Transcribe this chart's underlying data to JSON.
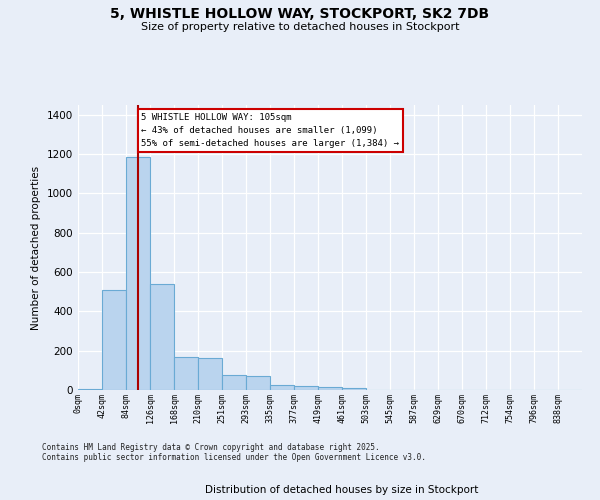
{
  "title_line1": "5, WHISTLE HOLLOW WAY, STOCKPORT, SK2 7DB",
  "title_line2": "Size of property relative to detached houses in Stockport",
  "xlabel": "Distribution of detached houses by size in Stockport",
  "ylabel": "Number of detached properties",
  "categories": [
    "0sqm",
    "42sqm",
    "84sqm",
    "126sqm",
    "168sqm",
    "210sqm",
    "251sqm",
    "293sqm",
    "335sqm",
    "377sqm",
    "419sqm",
    "461sqm",
    "503sqm",
    "545sqm",
    "587sqm",
    "629sqm",
    "670sqm",
    "712sqm",
    "754sqm",
    "796sqm",
    "838sqm"
  ],
  "values": [
    5,
    510,
    1185,
    540,
    170,
    165,
    75,
    70,
    25,
    20,
    15,
    10,
    0,
    0,
    0,
    0,
    0,
    0,
    0,
    0,
    0
  ],
  "bar_color": "#bad4ee",
  "bar_edge_color": "#6aaad4",
  "vline_color": "#aa0000",
  "vline_x": 105,
  "annotation_box_text": "5 WHISTLE HOLLOW WAY: 105sqm\n← 43% of detached houses are smaller (1,099)\n55% of semi-detached houses are larger (1,384) →",
  "annotation_box_facecolor": "#ffffff",
  "annotation_box_edgecolor": "#cc0000",
  "ylim": [
    0,
    1450
  ],
  "yticks": [
    0,
    200,
    400,
    600,
    800,
    1000,
    1200,
    1400
  ],
  "bg_color": "#e8eef8",
  "grid_color": "#ffffff",
  "footer_text": "Contains HM Land Registry data © Crown copyright and database right 2025.\nContains public sector information licensed under the Open Government Licence v3.0.",
  "bin_width": 42
}
